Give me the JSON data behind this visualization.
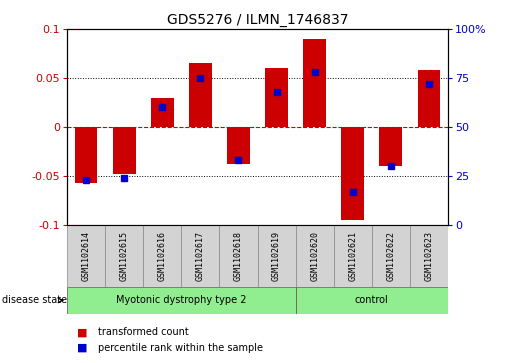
{
  "title": "GDS5276 / ILMN_1746837",
  "samples": [
    "GSM1102614",
    "GSM1102615",
    "GSM1102616",
    "GSM1102617",
    "GSM1102618",
    "GSM1102619",
    "GSM1102620",
    "GSM1102621",
    "GSM1102622",
    "GSM1102623"
  ],
  "transformed_counts": [
    -0.057,
    -0.048,
    0.03,
    0.065,
    -0.038,
    0.06,
    0.09,
    -0.095,
    -0.04,
    0.058
  ],
  "percentile_ranks": [
    23,
    24,
    60,
    75,
    33,
    68,
    78,
    17,
    30,
    72
  ],
  "group_boundaries": [
    0,
    6,
    10
  ],
  "group_labels": [
    "Myotonic dystrophy type 2",
    "control"
  ],
  "group_color": "#90EE90",
  "sample_label_bg": "#D3D3D3",
  "bar_color": "#CC0000",
  "percentile_color": "#0000CC",
  "ylim": [
    -0.1,
    0.1
  ],
  "yticks_left": [
    -0.1,
    -0.05,
    0,
    0.05,
    0.1
  ],
  "yticks_right": [
    0,
    25,
    50,
    75,
    100
  ],
  "grid_dotted": [
    -0.05,
    0.05
  ],
  "grid_dashed_zero": 0,
  "background_color": "#ffffff",
  "legend_items": [
    "transformed count",
    "percentile rank within the sample"
  ],
  "disease_state_label": "disease state",
  "bar_width": 0.6,
  "title_fontsize": 10,
  "tick_fontsize": 8,
  "label_fontsize": 7
}
